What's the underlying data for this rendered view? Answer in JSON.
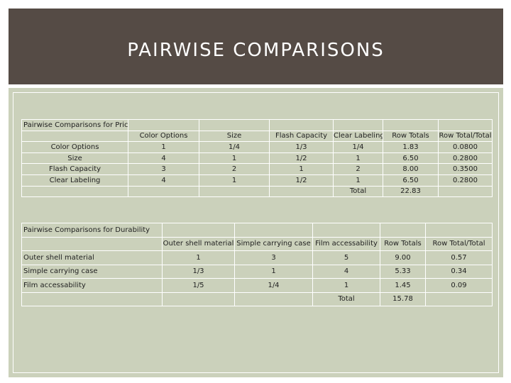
{
  "slide": {
    "title": "PAIRWISE COMPARISONS"
  },
  "price_table": {
    "caption": "Pairwise Comparisons for Price",
    "headers": [
      "",
      "Color Options",
      "Size",
      "Flash Capacity",
      "Clear Labeling",
      "Row Totals",
      "Row Total/Total"
    ],
    "rows": [
      [
        "Color Options",
        "1",
        "1/4",
        "1/3",
        "1/4",
        "1.83",
        "0.0800"
      ],
      [
        "Size",
        "4",
        "1",
        "1/2",
        "1",
        "6.50",
        "0.2800"
      ],
      [
        "Flash Capacity",
        "3",
        "2",
        "1",
        "2",
        "8.00",
        "0.3500"
      ],
      [
        "Clear Labeling",
        "4",
        "1",
        "1/2",
        "1",
        "6.50",
        "0.2800"
      ]
    ],
    "total_label": "Total",
    "total_value": "22.83"
  },
  "durability_table": {
    "caption": "Pairwise Comparisons for Durability",
    "headers": [
      "",
      "Outer shell material",
      "Simple carrying case",
      "Film accessability",
      "Row Totals",
      "Row Total/Total"
    ],
    "rows": [
      [
        "Outer shell material",
        "1",
        "3",
        "5",
        "9.00",
        "0.57"
      ],
      [
        "Simple carrying case",
        "1/3",
        "1",
        "4",
        "5.33",
        "0.34"
      ],
      [
        "Film accessability",
        "1/5",
        "1/4",
        "1",
        "1.45",
        "0.09"
      ]
    ],
    "total_label": "Total",
    "total_value": "15.78"
  }
}
